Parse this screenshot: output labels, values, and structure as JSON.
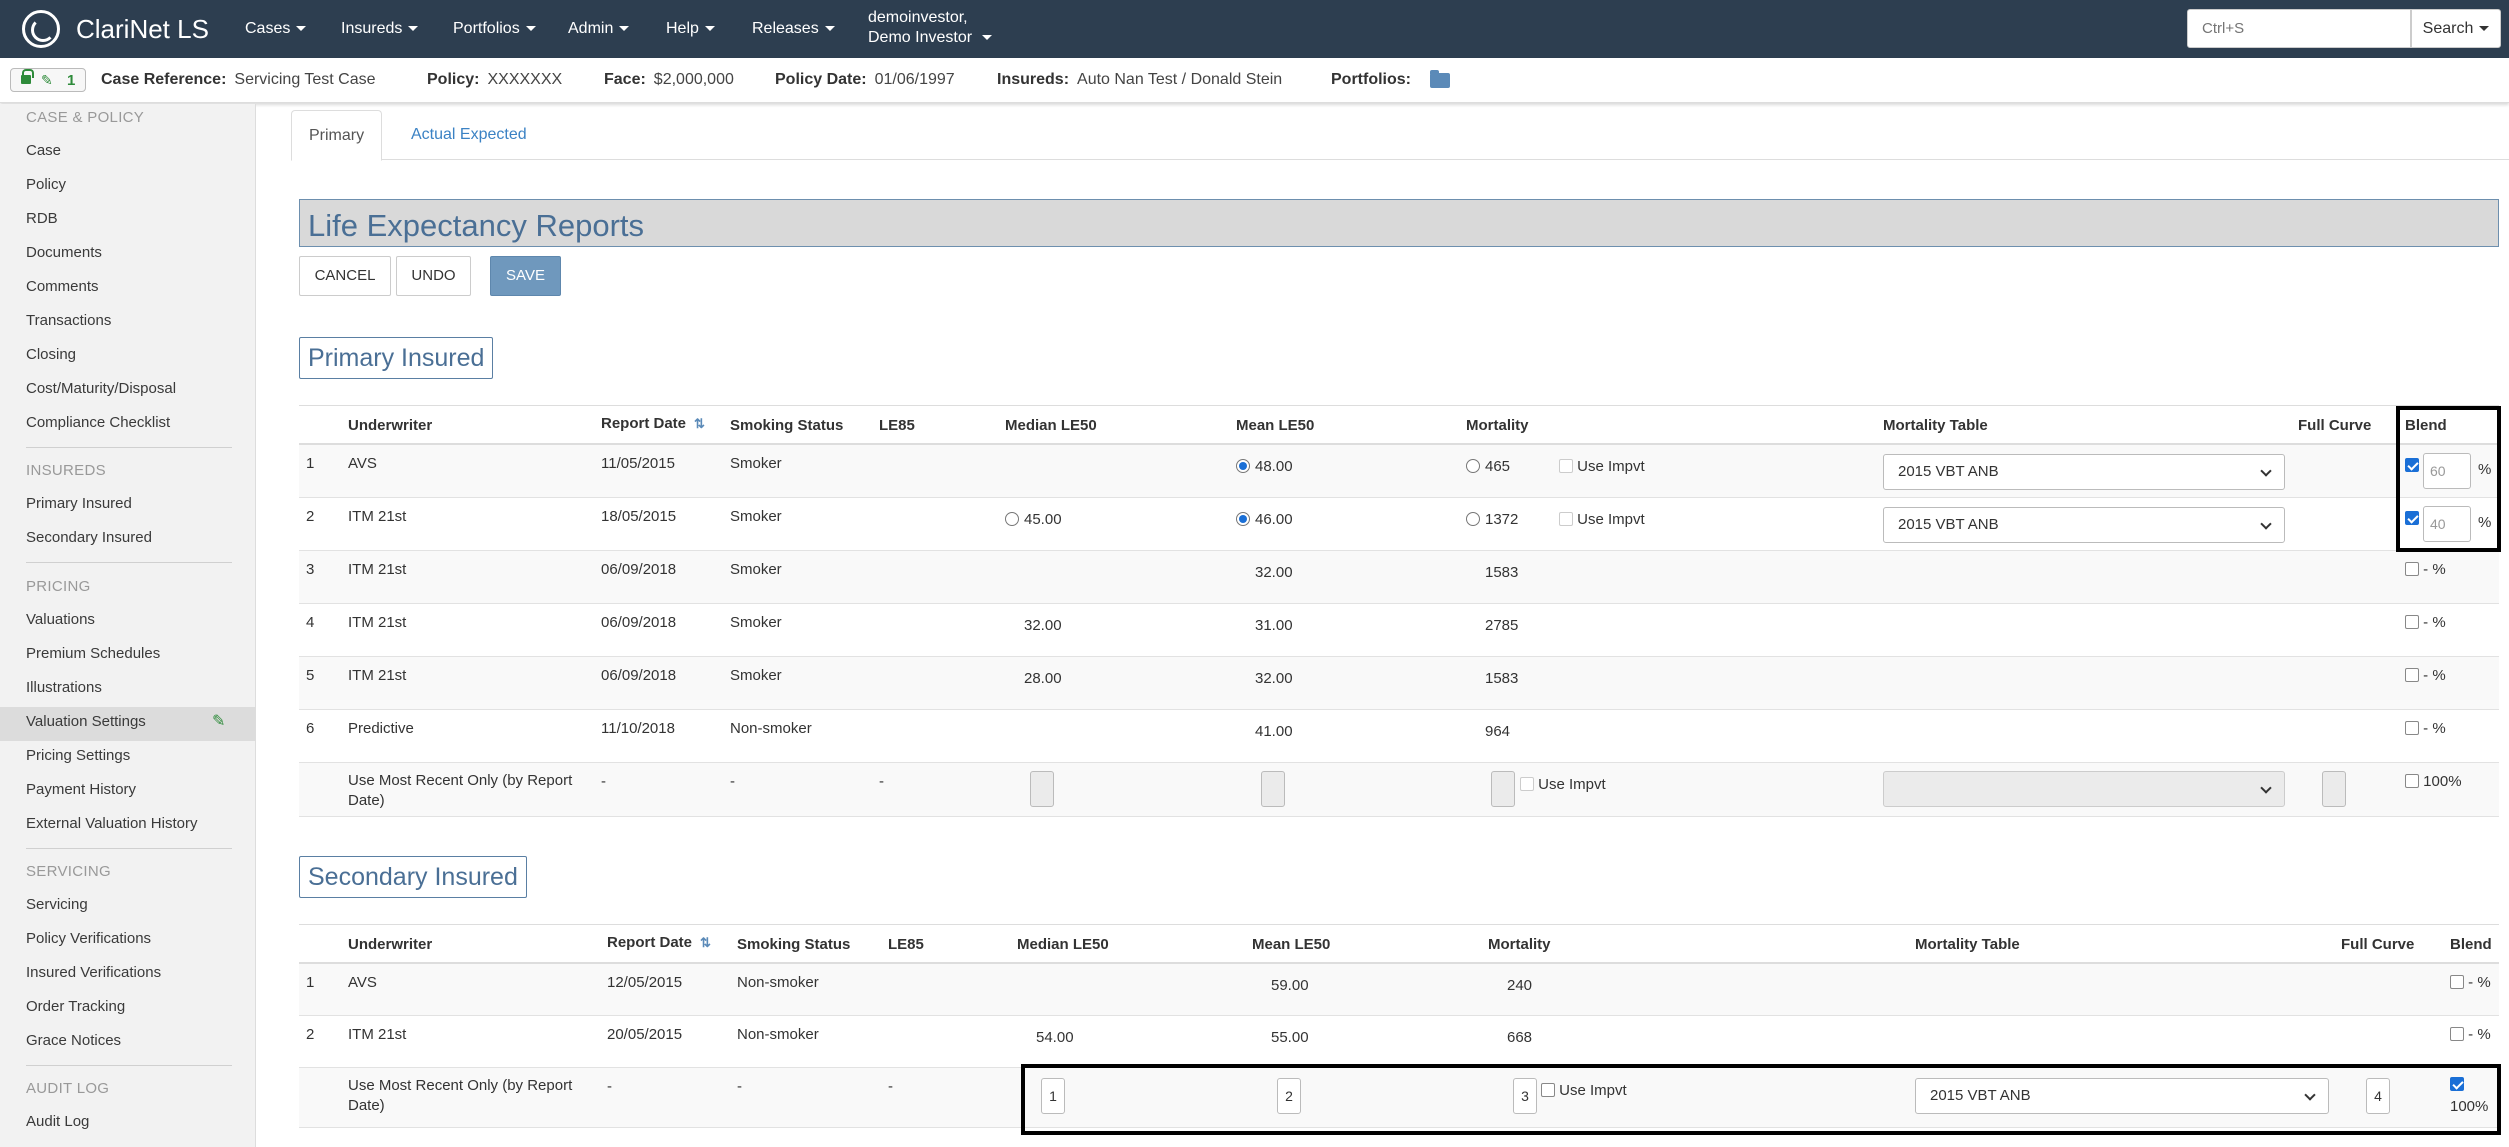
{
  "nav": {
    "brand": "ClariNet LS",
    "menus": [
      "Cases",
      "Insureds",
      "Portfolios",
      "Admin",
      "Help",
      "Releases"
    ],
    "user_line1": "demoinvestor,",
    "user_line2": "Demo Investor",
    "search_placeholder": "Ctrl+S",
    "search_button": "Search"
  },
  "casebar": {
    "lock_count": "1",
    "case_ref_label": "Case Reference:",
    "case_ref": "Servicing Test Case",
    "policy_label": "Policy:",
    "policy": "XXXXXXX",
    "face_label": "Face:",
    "face": "$2,000,000",
    "policy_date_label": "Policy Date:",
    "policy_date": "01/06/1997",
    "insureds_label": "Insureds:",
    "insureds": "Auto Nan Test / Donald Stein",
    "portfolios_label": "Portfolios:"
  },
  "sidebar": {
    "sections": [
      {
        "heading": "CASE & POLICY",
        "items": [
          "Case",
          "Policy",
          "RDB",
          "Documents",
          "Comments",
          "Transactions",
          "Closing",
          "Cost/Maturity/Disposal",
          "Compliance Checklist"
        ]
      },
      {
        "heading": "INSUREDS",
        "items": [
          "Primary Insured",
          "Secondary Insured"
        ]
      },
      {
        "heading": "PRICING",
        "items": [
          "Valuations",
          "Premium Schedules",
          "Illustrations",
          "Valuation Settings",
          "Pricing Settings",
          "Payment History",
          "External Valuation History"
        ]
      },
      {
        "heading": "SERVICING",
        "items": [
          "Servicing",
          "Policy Verifications",
          "Insured Verifications",
          "Order Tracking",
          "Grace Notices"
        ]
      },
      {
        "heading": "AUDIT LOG",
        "items": [
          "Audit Log"
        ]
      }
    ],
    "active": "Valuation Settings"
  },
  "tabs": [
    "Primary",
    "Actual Expected"
  ],
  "page_title": "Life Expectancy Reports",
  "buttons": {
    "cancel": "CANCEL",
    "undo": "UNDO",
    "save": "SAVE"
  },
  "primary": {
    "title": "Primary Insured",
    "headers": [
      "Underwriter",
      "Report Date",
      "Smoking Status",
      "LE85",
      "Median LE50",
      "Mean LE50",
      "Mortality",
      "Mortality Table",
      "Full Curve",
      "Blend"
    ],
    "rows": [
      {
        "n": "1",
        "underwriter": "AVS",
        "date": "11/05/2015",
        "smoking": "Smoker",
        "median": "",
        "median_radio": false,
        "mean": "48.00",
        "mean_radio": "on",
        "mortality": "465",
        "mort_radio": true,
        "impvt": "Use Impvt",
        "table": "2015 VBT ANB",
        "blend_checked": true,
        "blend": "60",
        "pct": "%"
      },
      {
        "n": "2",
        "underwriter": "ITM 21st",
        "date": "18/05/2015",
        "smoking": "Smoker",
        "median": "45.00",
        "median_radio": true,
        "mean": "46.00",
        "mean_radio": "on",
        "mortality": "1372",
        "mort_radio": true,
        "impvt": "Use Impvt",
        "table": "2015 VBT ANB",
        "blend_checked": true,
        "blend": "40",
        "pct": "%"
      },
      {
        "n": "3",
        "underwriter": "ITM 21st",
        "date": "06/09/2018",
        "smoking": "Smoker",
        "median": "",
        "mean": "32.00",
        "mortality": "1583",
        "blend_text": "- %"
      },
      {
        "n": "4",
        "underwriter": "ITM 21st",
        "date": "06/09/2018",
        "smoking": "Smoker",
        "median": "32.00",
        "mean": "31.00",
        "mortality": "2785",
        "blend_text": "- %"
      },
      {
        "n": "5",
        "underwriter": "ITM 21st",
        "date": "06/09/2018",
        "smoking": "Smoker",
        "median": "28.00",
        "mean": "32.00",
        "mortality": "1583",
        "blend_text": "- %"
      },
      {
        "n": "6",
        "underwriter": "Predictive",
        "date": "11/10/2018",
        "smoking": "Non-smoker",
        "median": "",
        "mean": "41.00",
        "mortality": "964",
        "blend_text": "- %"
      }
    ],
    "recent": {
      "label_line1": "Use Most Recent Only (by Report",
      "label_line2": "Date)",
      "date": "-",
      "smoking": "-",
      "le85": "-",
      "impvt": "Use Impvt",
      "blend": "100%"
    }
  },
  "secondary": {
    "title": "Secondary Insured",
    "headers": [
      "Underwriter",
      "Report Date",
      "Smoking Status",
      "LE85",
      "Median LE50",
      "Mean LE50",
      "Mortality",
      "Mortality Table",
      "Full Curve",
      "Blend"
    ],
    "rows": [
      {
        "n": "1",
        "underwriter": "AVS",
        "date": "12/05/2015",
        "smoking": "Non-smoker",
        "median": "",
        "mean": "59.00",
        "mortality": "240",
        "blend_text": "- %"
      },
      {
        "n": "2",
        "underwriter": "ITM 21st",
        "date": "20/05/2015",
        "smoking": "Non-smoker",
        "median": "54.00",
        "mean": "55.00",
        "mortality": "668",
        "blend_text": "- %"
      }
    ],
    "recent": {
      "label_line1": "Use Most Recent Only (by Report",
      "label_line2": "Date)",
      "date": "-",
      "smoking": "-",
      "le85": "-",
      "median_box": "1",
      "mean_box": "2",
      "mort_box": "3",
      "impvt": "Use Impvt",
      "table": "2015 VBT ANB",
      "full_box": "4",
      "blend": "100%"
    }
  }
}
